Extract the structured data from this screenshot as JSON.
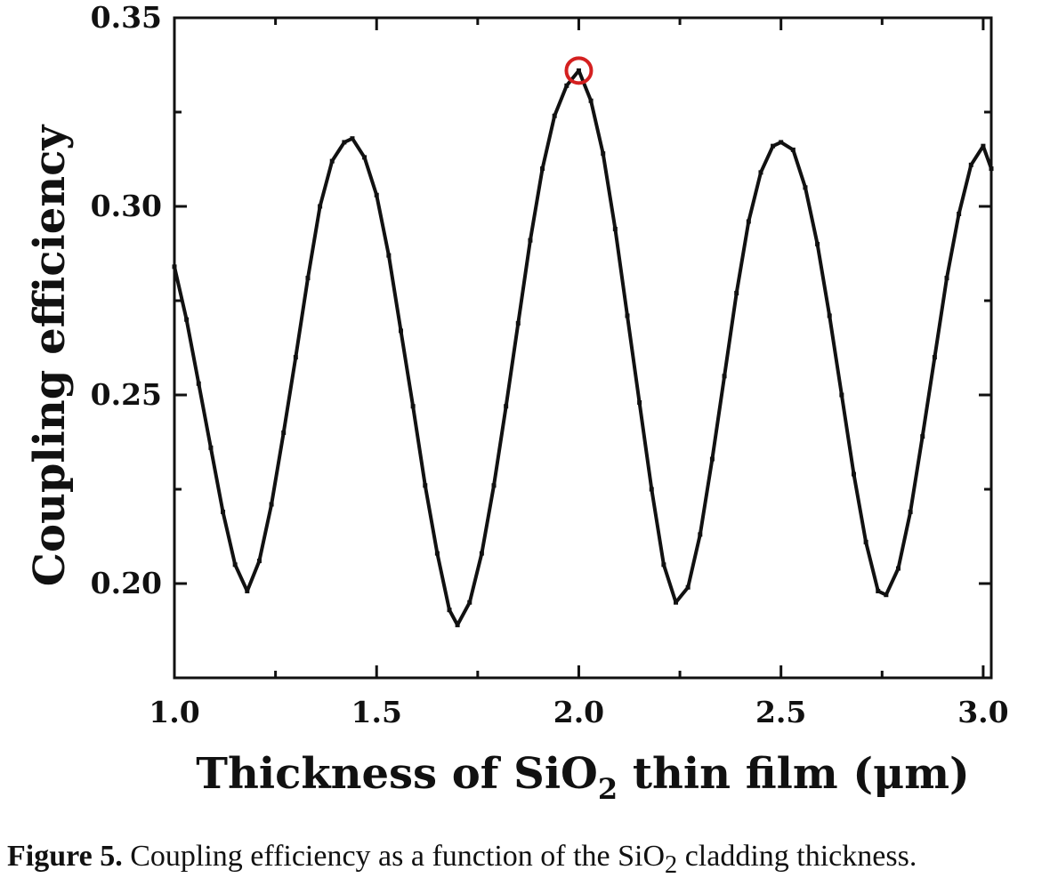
{
  "chart_data": {
    "type": "line",
    "xlabel_parts": [
      "Thickness of SiO",
      "2",
      " thin film (μm)"
    ],
    "ylabel": "Coupling efficiency",
    "xlim": [
      1.0,
      3.02
    ],
    "ylim": [
      0.175,
      0.35
    ],
    "x_ticks": [
      1.0,
      1.5,
      2.0,
      2.5,
      3.0
    ],
    "x_tick_labels": [
      "1.0",
      "1.5",
      "2.0",
      "2.5",
      "3.0"
    ],
    "y_ticks": [
      0.2,
      0.25,
      0.3,
      0.35
    ],
    "y_tick_labels": [
      "0.20",
      "0.25",
      "0.30",
      "0.35"
    ],
    "grid": false,
    "series": [
      {
        "color": "#111111",
        "x": [
          1.0,
          1.03,
          1.06,
          1.09,
          1.12,
          1.15,
          1.18,
          1.21,
          1.24,
          1.27,
          1.3,
          1.33,
          1.36,
          1.39,
          1.42,
          1.44,
          1.47,
          1.5,
          1.53,
          1.56,
          1.59,
          1.62,
          1.65,
          1.68,
          1.7,
          1.73,
          1.76,
          1.79,
          1.82,
          1.85,
          1.88,
          1.91,
          1.94,
          1.97,
          2.0,
          2.03,
          2.06,
          2.09,
          2.12,
          2.15,
          2.18,
          2.21,
          2.24,
          2.27,
          2.3,
          2.33,
          2.36,
          2.39,
          2.42,
          2.45,
          2.48,
          2.5,
          2.53,
          2.56,
          2.59,
          2.62,
          2.65,
          2.68,
          2.71,
          2.74,
          2.76,
          2.79,
          2.82,
          2.85,
          2.88,
          2.91,
          2.94,
          2.97,
          3.0,
          3.02
        ],
        "y": [
          0.284,
          0.27,
          0.253,
          0.236,
          0.219,
          0.205,
          0.198,
          0.206,
          0.221,
          0.24,
          0.26,
          0.281,
          0.3,
          0.312,
          0.317,
          0.318,
          0.313,
          0.303,
          0.287,
          0.267,
          0.247,
          0.226,
          0.208,
          0.193,
          0.189,
          0.195,
          0.208,
          0.226,
          0.247,
          0.269,
          0.291,
          0.31,
          0.324,
          0.332,
          0.336,
          0.328,
          0.314,
          0.294,
          0.271,
          0.248,
          0.225,
          0.205,
          0.195,
          0.199,
          0.213,
          0.233,
          0.255,
          0.277,
          0.296,
          0.309,
          0.316,
          0.317,
          0.315,
          0.305,
          0.29,
          0.271,
          0.25,
          0.229,
          0.211,
          0.198,
          0.197,
          0.204,
          0.219,
          0.239,
          0.26,
          0.281,
          0.298,
          0.311,
          0.316,
          0.31
        ]
      }
    ],
    "highlight": {
      "x": 2.0,
      "y": 0.336,
      "color": "#d42020"
    }
  },
  "caption": {
    "lead": "Figure 5.",
    "text_before": " Coupling efficiency as a function of the SiO",
    "sub": "2",
    "text_after": " cladding thickness."
  }
}
